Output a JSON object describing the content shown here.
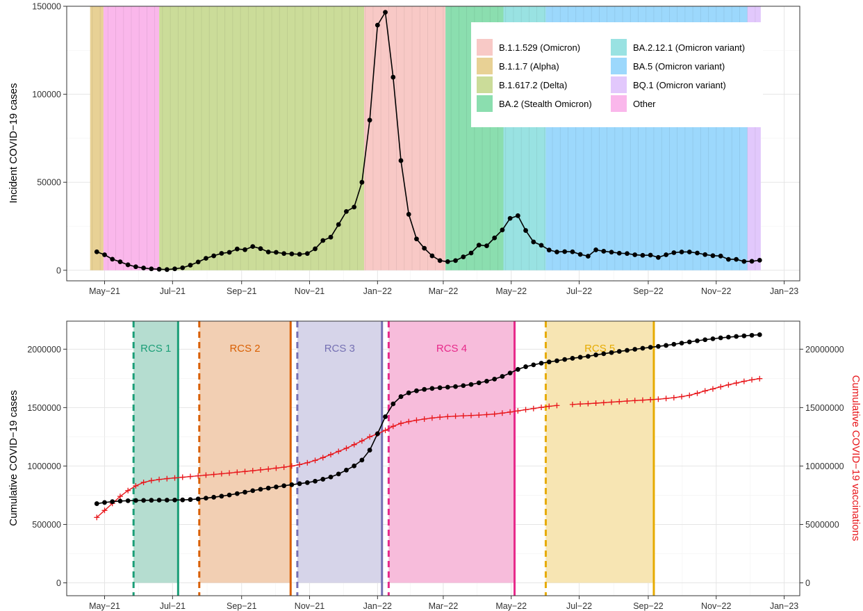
{
  "chart_data": [
    {
      "type": "line",
      "title": "",
      "xlabel": "",
      "ylabel": "Incident COVID−19 cases",
      "x_range": [
        "2021-03-28",
        "2023-01-15"
      ],
      "ylim": [
        -6000,
        150000
      ],
      "grid": true,
      "legend_position": "top-right",
      "x_ticks": [
        {
          "date": "2021-05-01",
          "label": "May−21"
        },
        {
          "date": "2021-07-01",
          "label": "Jul−21"
        },
        {
          "date": "2021-09-01",
          "label": "Sep−21"
        },
        {
          "date": "2021-11-01",
          "label": "Nov−21"
        },
        {
          "date": "2022-01-01",
          "label": "Jan−22"
        },
        {
          "date": "2022-03-01",
          "label": "Mar−22"
        },
        {
          "date": "2022-05-01",
          "label": "May−22"
        },
        {
          "date": "2022-07-01",
          "label": "Jul−22"
        },
        {
          "date": "2022-09-01",
          "label": "Sep−22"
        },
        {
          "date": "2022-11-01",
          "label": "Nov−22"
        },
        {
          "date": "2023-01-01",
          "label": "Jan−23"
        }
      ],
      "y_ticks": [
        {
          "value": 0,
          "label": "0"
        },
        {
          "value": 50000,
          "label": "50000"
        },
        {
          "value": 100000,
          "label": "100000"
        },
        {
          "value": 150000,
          "label": "150000"
        }
      ],
      "variant_periods": [
        {
          "variant": "B.1.1.7 (Alpha)",
          "start": "2021-04-18",
          "end": "2021-04-30"
        },
        {
          "variant": "Other",
          "start": "2021-04-30",
          "end": "2021-06-19"
        },
        {
          "variant": "B.1.617.2 (Delta)",
          "start": "2021-06-19",
          "end": "2021-12-20"
        },
        {
          "variant": "B.1.1.529 (Omicron)",
          "start": "2021-12-20",
          "end": "2022-03-03"
        },
        {
          "variant": "BA.2 (Stealth Omicron)",
          "start": "2022-03-03",
          "end": "2022-04-24"
        },
        {
          "variant": "BA.2.12.1 (Omicron variant)",
          "start": "2022-04-24",
          "end": "2022-06-01"
        },
        {
          "variant": "BA.5 (Omicron variant)",
          "start": "2022-06-01",
          "end": "2022-11-29"
        },
        {
          "variant": "BQ.1 (Omicron variant)",
          "start": "2022-11-29",
          "end": "2022-12-11"
        }
      ],
      "legend": [
        {
          "label": "B.1.1.529 (Omicron)",
          "color": "#F8C9C6"
        },
        {
          "label": "B.1.1.7 (Alpha)",
          "color": "#E8D195"
        },
        {
          "label": "B.1.617.2 (Delta)",
          "color": "#CBDC99"
        },
        {
          "label": "BA.2 (Stealth Omicron)",
          "color": "#8BDEAF"
        },
        {
          "label": "BA.2.12.1 (Omicron variant)",
          "color": "#99E2E2"
        },
        {
          "label": "BA.5 (Omicron variant)",
          "color": "#9CD8FC"
        },
        {
          "label": "BQ.1 (Omicron variant)",
          "color": "#E2C8FC"
        },
        {
          "label": "Other",
          "color": "#FAB7EB"
        }
      ],
      "series": [
        {
          "x": [
            "2021-04-24",
            "2021-05-01",
            "2021-05-08",
            "2021-05-15",
            "2021-05-22",
            "2021-05-29",
            "2021-06-05",
            "2021-06-12",
            "2021-06-19",
            "2021-06-26",
            "2021-07-03",
            "2021-07-10",
            "2021-07-17",
            "2021-07-24",
            "2021-07-31",
            "2021-08-07",
            "2021-08-14",
            "2021-08-21",
            "2021-08-28",
            "2021-09-04",
            "2021-09-11",
            "2021-09-18",
            "2021-09-25",
            "2021-10-02",
            "2021-10-09",
            "2021-10-16",
            "2021-10-23",
            "2021-10-30",
            "2021-11-06",
            "2021-11-13",
            "2021-11-20",
            "2021-11-27",
            "2021-12-04",
            "2021-12-11",
            "2021-12-18",
            "2021-12-25",
            "2022-01-01",
            "2022-01-08",
            "2022-01-15",
            "2022-01-22",
            "2022-01-29",
            "2022-02-05",
            "2022-02-12",
            "2022-02-19",
            "2022-02-26",
            "2022-03-05",
            "2022-03-12",
            "2022-03-19",
            "2022-03-26",
            "2022-04-02",
            "2022-04-09",
            "2022-04-16",
            "2022-04-23",
            "2022-04-30",
            "2022-05-07",
            "2022-05-14",
            "2022-05-21",
            "2022-05-28",
            "2022-06-04",
            "2022-06-11",
            "2022-06-18",
            "2022-06-25",
            "2022-07-02",
            "2022-07-09",
            "2022-07-16",
            "2022-07-23",
            "2022-07-30",
            "2022-08-06",
            "2022-08-13",
            "2022-08-20",
            "2022-08-27",
            "2022-09-03",
            "2022-09-10",
            "2022-09-17",
            "2022-09-24",
            "2022-10-01",
            "2022-10-08",
            "2022-10-15",
            "2022-10-22",
            "2022-10-29",
            "2022-11-05",
            "2022-11-12",
            "2022-11-19",
            "2022-11-26",
            "2022-12-03",
            "2022-12-10"
          ],
          "values": [
            10500,
            8800,
            6300,
            4800,
            3100,
            2000,
            1300,
            800,
            600,
            400,
            800,
            1400,
            2900,
            4700,
            6800,
            8200,
            9600,
            10200,
            12100,
            11700,
            13500,
            12300,
            10400,
            10200,
            9500,
            9300,
            9100,
            9500,
            12200,
            16900,
            18800,
            26000,
            33400,
            35900,
            50000,
            85300,
            139300,
            146600,
            109700,
            62300,
            31800,
            17800,
            12500,
            8200,
            5500,
            4900,
            5500,
            7600,
            9800,
            14300,
            13900,
            18400,
            22900,
            29500,
            31000,
            22600,
            16100,
            14200,
            11500,
            10400,
            10600,
            10500,
            9000,
            8000,
            11600,
            10800,
            10300,
            9700,
            9500,
            8800,
            8500,
            8600,
            7300,
            8800,
            10000,
            10400,
            10400,
            9800,
            8900,
            8300,
            8100,
            6200,
            6200,
            5000,
            5100,
            5700
          ]
        }
      ]
    },
    {
      "type": "line",
      "title": "",
      "xlabel": "",
      "ylabel": "Cumulative COVID−19 cases",
      "ylabel_right": "Cumulative COVID−19 vaccinations",
      "x_range": [
        "2021-03-28",
        "2023-01-15"
      ],
      "ylim": [
        -110000,
        2240000
      ],
      "ylim_right": [
        -1100000,
        22400000
      ],
      "grid": true,
      "x_ticks": [
        {
          "date": "2021-05-01",
          "label": "May−21"
        },
        {
          "date": "2021-07-01",
          "label": "Jul−21"
        },
        {
          "date": "2021-09-01",
          "label": "Sep−21"
        },
        {
          "date": "2021-11-01",
          "label": "Nov−21"
        },
        {
          "date": "2022-01-01",
          "label": "Jan−22"
        },
        {
          "date": "2022-03-01",
          "label": "Mar−22"
        },
        {
          "date": "2022-05-01",
          "label": "May−22"
        },
        {
          "date": "2022-07-01",
          "label": "Jul−22"
        },
        {
          "date": "2022-09-01",
          "label": "Sep−22"
        },
        {
          "date": "2022-11-01",
          "label": "Nov−22"
        },
        {
          "date": "2023-01-01",
          "label": "Jan−23"
        }
      ],
      "y_ticks": [
        {
          "value": 0,
          "label": "0"
        },
        {
          "value": 500000,
          "label": "500000"
        },
        {
          "value": 1000000,
          "label": "1000000"
        },
        {
          "value": 1500000,
          "label": "1500000"
        },
        {
          "value": 2000000,
          "label": "2000000"
        }
      ],
      "y_ticks_right": [
        {
          "value": 0,
          "label": "0"
        },
        {
          "value": 5000000,
          "label": "5000000"
        },
        {
          "value": 10000000,
          "label": "10000000"
        },
        {
          "value": 15000000,
          "label": "15000000"
        },
        {
          "value": 20000000,
          "label": "20000000"
        }
      ],
      "survey_rounds": [
        {
          "label": "RCS 1",
          "start": "2021-05-27",
          "end": "2021-07-06",
          "color": "#1B9E77",
          "fill": "#B5DDD0"
        },
        {
          "label": "RCS 2",
          "start": "2021-07-25",
          "end": "2021-10-15",
          "color": "#D95F02",
          "fill": "#F2CFB3"
        },
        {
          "label": "RCS 3",
          "start": "2021-10-21",
          "end": "2022-01-05",
          "color": "#7570B3",
          "fill": "#D6D4E9"
        },
        {
          "label": "RCS 4",
          "start": "2022-01-11",
          "end": "2022-05-04",
          "color": "#E7298A",
          "fill": "#F7BCDB"
        },
        {
          "label": "RCS 5",
          "start": "2022-06-01",
          "end": "2022-09-06",
          "color": "#E6AB02",
          "fill": "#F7E5B3"
        }
      ],
      "series": [
        {
          "name": "",
          "axis": "left",
          "x": [
            "2021-04-24",
            "2021-05-01",
            "2021-05-08",
            "2021-05-15",
            "2021-05-22",
            "2021-05-29",
            "2021-06-05",
            "2021-06-12",
            "2021-06-19",
            "2021-06-26",
            "2021-07-03",
            "2021-07-10",
            "2021-07-17",
            "2021-07-24",
            "2021-07-31",
            "2021-08-07",
            "2021-08-14",
            "2021-08-21",
            "2021-08-28",
            "2021-09-04",
            "2021-09-11",
            "2021-09-18",
            "2021-09-25",
            "2021-10-02",
            "2021-10-09",
            "2021-10-16",
            "2021-10-23",
            "2021-10-30",
            "2021-11-06",
            "2021-11-13",
            "2021-11-20",
            "2021-11-27",
            "2021-12-04",
            "2021-12-11",
            "2021-12-18",
            "2021-12-25",
            "2022-01-01",
            "2022-01-08",
            "2022-01-15",
            "2022-01-22",
            "2022-01-29",
            "2022-02-05",
            "2022-02-12",
            "2022-02-19",
            "2022-02-26",
            "2022-03-05",
            "2022-03-12",
            "2022-03-19",
            "2022-03-26",
            "2022-04-02",
            "2022-04-09",
            "2022-04-16",
            "2022-04-23",
            "2022-04-30",
            "2022-05-07",
            "2022-05-14",
            "2022-05-21",
            "2022-05-28",
            "2022-06-04",
            "2022-06-11",
            "2022-06-18",
            "2022-06-25",
            "2022-07-02",
            "2022-07-09",
            "2022-07-16",
            "2022-07-23",
            "2022-07-30",
            "2022-08-06",
            "2022-08-13",
            "2022-08-20",
            "2022-08-27",
            "2022-09-03",
            "2022-09-10",
            "2022-09-17",
            "2022-09-24",
            "2022-10-01",
            "2022-10-08",
            "2022-10-15",
            "2022-10-22",
            "2022-10-29",
            "2022-11-05",
            "2022-11-12",
            "2022-11-19",
            "2022-11-26",
            "2022-12-03",
            "2022-12-10"
          ],
          "values": [
            678000,
            688000,
            695000,
            700000,
            703000,
            705000,
            706000,
            707000,
            708000,
            708000,
            709000,
            710000,
            713000,
            718000,
            725000,
            733000,
            742000,
            752000,
            764000,
            776000,
            789000,
            801000,
            811000,
            821000,
            831000,
            840000,
            849000,
            858000,
            870000,
            887000,
            906000,
            932000,
            965000,
            1001000,
            1051000,
            1136000,
            1276000,
            1422000,
            1532000,
            1594000,
            1626000,
            1644000,
            1656000,
            1664000,
            1670000,
            1675000,
            1680000,
            1688000,
            1698000,
            1712000,
            1726000,
            1744000,
            1767000,
            1796000,
            1827000,
            1850000,
            1866000,
            1880000,
            1891000,
            1901000,
            1912000,
            1922000,
            1931000,
            1939000,
            1951000,
            1961000,
            1971000,
            1981000,
            1990000,
            1999000,
            2008000,
            2016000,
            2024000,
            2032000,
            2042000,
            2052000,
            2062000,
            2072000,
            2081000,
            2089000,
            2097000,
            2103000,
            2109000,
            2114000,
            2119000,
            2124000
          ]
        },
        {
          "name": "",
          "axis": "right",
          "color": "#E8161B",
          "x": [
            "2021-04-24",
            "2021-05-01",
            "2021-05-08",
            "2021-05-15",
            "2021-05-22",
            "2021-05-29",
            "2021-06-05",
            "2021-06-12",
            "2021-06-19",
            "2021-06-26",
            "2021-07-03",
            "2021-07-10",
            "2021-07-17",
            "2021-07-24",
            "2021-07-31",
            "2021-08-07",
            "2021-08-14",
            "2021-08-21",
            "2021-08-28",
            "2021-09-04",
            "2021-09-11",
            "2021-09-18",
            "2021-09-25",
            "2021-10-02",
            "2021-10-09",
            "2021-10-16",
            "2021-10-23",
            "2021-10-30",
            "2021-11-06",
            "2021-11-13",
            "2021-11-20",
            "2021-11-27",
            "2021-12-04",
            "2021-12-11",
            "2021-12-18",
            "2021-12-25",
            "2022-01-01",
            "2022-01-08",
            "2022-01-15",
            "2022-01-22",
            "2022-01-29",
            "2022-02-05",
            "2022-02-12",
            "2022-02-19",
            "2022-02-26",
            "2022-03-05",
            "2022-03-12",
            "2022-03-19",
            "2022-03-26",
            "2022-04-02",
            "2022-04-09",
            "2022-04-16",
            "2022-04-23",
            "2022-04-30",
            "2022-05-07",
            "2022-05-14",
            "2022-05-21",
            "2022-05-28",
            "2022-06-04",
            "2022-06-11",
            null,
            "2022-06-25",
            "2022-07-02",
            "2022-07-09",
            "2022-07-16",
            "2022-07-23",
            "2022-07-30",
            "2022-08-06",
            "2022-08-13",
            "2022-08-20",
            "2022-08-27",
            "2022-09-03",
            "2022-09-10",
            "2022-09-17",
            "2022-09-24",
            "2022-10-01",
            "2022-10-08",
            "2022-10-15",
            "2022-10-22",
            "2022-10-29",
            "2022-11-05",
            "2022-11-12",
            "2022-11-19",
            "2022-11-26",
            "2022-12-03",
            "2022-12-10"
          ],
          "values": [
            5600000,
            6200000,
            6800000,
            7400000,
            7900000,
            8300000,
            8600000,
            8750000,
            8850000,
            8920000,
            8980000,
            9040000,
            9100000,
            9160000,
            9220000,
            9280000,
            9340000,
            9400000,
            9470000,
            9530000,
            9600000,
            9670000,
            9740000,
            9820000,
            9900000,
            10000000,
            10120000,
            10280000,
            10480000,
            10720000,
            10980000,
            11250000,
            11520000,
            11830000,
            12150000,
            12500000,
            12750000,
            13050000,
            13400000,
            13650000,
            13800000,
            13920000,
            14020000,
            14110000,
            14180000,
            14230000,
            14270000,
            14300000,
            14330000,
            14360000,
            14400000,
            14450000,
            14530000,
            14620000,
            14720000,
            14820000,
            14920000,
            15020000,
            15110000,
            15180000,
            null,
            15270000,
            15310000,
            15340000,
            15380000,
            15420000,
            15470000,
            15510000,
            15560000,
            15600000,
            15640000,
            15680000,
            15720000,
            15780000,
            15850000,
            15940000,
            16050000,
            16230000,
            16430000,
            16600000,
            16780000,
            16950000,
            17100000,
            17250000,
            17380000,
            17480000
          ]
        }
      ]
    }
  ]
}
